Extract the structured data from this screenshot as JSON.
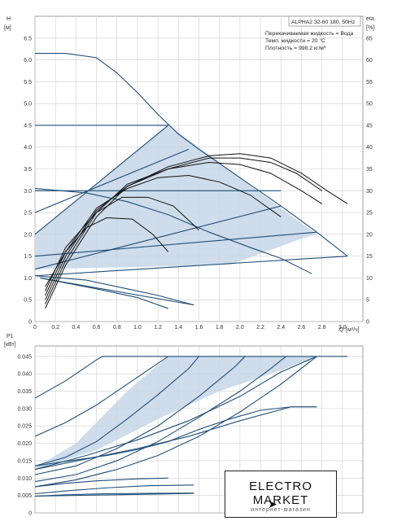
{
  "header": {
    "model": "ALPHA2 32-60 180, 50Hz",
    "medium": "Перекачиваемая жидкость = Вода",
    "temperature": "Темп. жидкости = 20 °C",
    "density": "Плотность = 998.2 кг/м³"
  },
  "logo": {
    "text": "ELECTRO MARKET",
    "subtitle": "интернет-магазин",
    "cursor_icon": "cursor-arrow-icon"
  },
  "colors": {
    "curve": "#1f4e79",
    "fill": "#c6d6e7",
    "grid": "#cfcfcf",
    "efficiency": "#111111"
  },
  "chart_data": [
    {
      "type": "line",
      "name": "head",
      "ylabel": "H",
      "yunit": "[м]",
      "xlabel": "Q",
      "xunit": "[м³/ч]",
      "y2label": "eta",
      "y2unit": "[%]",
      "xlim": [
        0,
        3.2
      ],
      "ylim": [
        0,
        7.0
      ],
      "y2lim": [
        0,
        70
      ],
      "xticks": [
        "0",
        "0.2",
        "0.4",
        "0.6",
        "0.8",
        "1.0",
        "1.2",
        "1.4",
        "1.6",
        "1.8",
        "2.0",
        "2.2",
        "2.4",
        "2.6",
        "2.8",
        "3.0"
      ],
      "yticks": [
        "0",
        "0.5",
        "1.0",
        "1.5",
        "2.0",
        "2.5",
        "3.0",
        "3.5",
        "4.0",
        "4.5",
        "5.0",
        "5.5",
        "6.0",
        "6.5"
      ],
      "y2ticks": [
        "0",
        "5",
        "10",
        "15",
        "20",
        "25",
        "30",
        "35",
        "40",
        "45",
        "50",
        "55",
        "60",
        "65"
      ],
      "grid": true,
      "areas": [
        {
          "points": [
            [
              0,
              2.0
            ],
            [
              1.3,
              4.5
            ],
            [
              1.6,
              4.0
            ],
            [
              2.0,
              3.3
            ],
            [
              2.4,
              2.6
            ],
            [
              2.75,
              2.0
            ],
            [
              2.6,
              1.9
            ],
            [
              1.9,
              1.3
            ],
            [
              0,
              1.2
            ]
          ]
        }
      ],
      "series": [
        {
          "values": [
            [
              0,
              6.15
            ],
            [
              0.3,
              6.15
            ],
            [
              0.6,
              6.05
            ],
            [
              0.8,
              5.7
            ],
            [
              1.0,
              5.25
            ],
            [
              1.2,
              4.75
            ],
            [
              1.4,
              4.3
            ],
            [
              1.6,
              3.95
            ],
            [
              2.0,
              3.3
            ],
            [
              2.4,
              2.65
            ],
            [
              2.75,
              2.05
            ],
            [
              3.05,
              1.5
            ]
          ]
        },
        {
          "values": [
            [
              0,
              4.5
            ],
            [
              1.3,
              4.5
            ]
          ]
        },
        {
          "values": [
            [
              0,
              3.05
            ],
            [
              0.5,
              2.95
            ],
            [
              0.9,
              2.75
            ],
            [
              1.3,
              2.45
            ],
            [
              1.7,
              2.05
            ],
            [
              2.1,
              1.7
            ],
            [
              2.4,
              1.45
            ],
            [
              2.7,
              1.1
            ]
          ]
        },
        {
          "values": [
            [
              0,
              3.0
            ],
            [
              2.4,
              3.0
            ]
          ]
        },
        {
          "values": [
            [
              0,
              2.0
            ],
            [
              1.3,
              4.5
            ]
          ]
        },
        {
          "values": [
            [
              0,
              2.5
            ],
            [
              1.5,
              3.95
            ]
          ]
        },
        {
          "values": [
            [
              0,
              1.5
            ],
            [
              2.75,
              2.05
            ]
          ]
        },
        {
          "values": [
            [
              0,
              1.2
            ],
            [
              2.4,
              2.65
            ]
          ]
        },
        {
          "values": [
            [
              0,
              1.05
            ],
            [
              0.5,
              0.95
            ],
            [
              0.9,
              0.75
            ],
            [
              1.2,
              0.6
            ],
            [
              1.55,
              0.38
            ]
          ]
        },
        {
          "values": [
            [
              0.05,
              1.0
            ],
            [
              1.55,
              0.38
            ]
          ]
        },
        {
          "values": [
            [
              0.05,
              1.0
            ],
            [
              0.6,
              0.75
            ],
            [
              1.0,
              0.55
            ],
            [
              1.3,
              0.3
            ]
          ]
        },
        {
          "values": [
            [
              0,
              1.05
            ],
            [
              3.05,
              1.5
            ]
          ]
        }
      ],
      "efficiency": [
        {
          "values": [
            [
              0.1,
              3
            ],
            [
              0.3,
              13
            ],
            [
              0.6,
              24
            ],
            [
              0.9,
              31
            ],
            [
              1.3,
              35.5
            ],
            [
              1.7,
              38
            ],
            [
              2.0,
              38.5
            ],
            [
              2.3,
              37.5
            ],
            [
              2.6,
              34
            ],
            [
              2.85,
              30
            ],
            [
              3.05,
              27
            ]
          ]
        },
        {
          "values": [
            [
              0.1,
              4
            ],
            [
              0.3,
              14
            ],
            [
              0.6,
              25
            ],
            [
              0.9,
              31.5
            ],
            [
              1.3,
              35
            ],
            [
              1.7,
              37.5
            ],
            [
              2.0,
              37.5
            ],
            [
              2.3,
              36.5
            ],
            [
              2.55,
              34
            ],
            [
              2.8,
              30
            ]
          ]
        },
        {
          "values": [
            [
              0.1,
              5
            ],
            [
              0.3,
              15
            ],
            [
              0.6,
              25.5
            ],
            [
              0.9,
              31
            ],
            [
              1.3,
              35
            ],
            [
              1.7,
              36.5
            ],
            [
              2.0,
              36
            ],
            [
              2.3,
              34
            ],
            [
              2.6,
              30
            ],
            [
              2.8,
              27
            ]
          ]
        },
        {
          "values": [
            [
              0.1,
              6
            ],
            [
              0.3,
              16
            ],
            [
              0.6,
              26
            ],
            [
              0.9,
              30.5
            ],
            [
              1.2,
              33
            ],
            [
              1.5,
              33.5
            ],
            [
              1.8,
              32
            ],
            [
              2.1,
              29
            ],
            [
              2.4,
              24
            ]
          ]
        },
        {
          "values": [
            [
              0.1,
              7
            ],
            [
              0.3,
              17
            ],
            [
              0.6,
              25
            ],
            [
              0.85,
              28.5
            ],
            [
              1.1,
              28.5
            ],
            [
              1.35,
              26.5
            ],
            [
              1.6,
              21
            ]
          ]
        },
        {
          "values": [
            [
              0.1,
              8
            ],
            [
              0.3,
              16
            ],
            [
              0.5,
              21.5
            ],
            [
              0.7,
              23.8
            ],
            [
              0.95,
              23.5
            ],
            [
              1.15,
              20
            ],
            [
              1.3,
              16
            ]
          ]
        }
      ]
    },
    {
      "type": "line",
      "name": "power",
      "ylabel": "P1",
      "yunit": "[кВт]",
      "xlim": [
        0,
        3.2
      ],
      "ylim": [
        0,
        0.048
      ],
      "yticks": [
        "0",
        "0.005",
        "0.010",
        "0.015",
        "0.020",
        "0.025",
        "0.030",
        "0.035",
        "0.040",
        "0.045"
      ],
      "grid": true,
      "areas": [
        {
          "points": [
            [
              0,
              0.0125
            ],
            [
              0.6,
              0.018
            ],
            [
              1.2,
              0.027
            ],
            [
              1.8,
              0.035
            ],
            [
              2.4,
              0.041
            ],
            [
              2.75,
              0.045
            ],
            [
              1.3,
              0.045
            ],
            [
              0.9,
              0.035
            ],
            [
              0.4,
              0.02
            ],
            [
              0,
              0.013
            ]
          ]
        }
      ],
      "series": [
        {
          "values": [
            [
              0,
              0.033
            ],
            [
              0.3,
              0.038
            ],
            [
              0.6,
              0.044
            ],
            [
              0.66,
              0.045
            ],
            [
              3.05,
              0.045
            ]
          ]
        },
        {
          "values": [
            [
              0,
              0.022
            ],
            [
              0.3,
              0.026
            ],
            [
              0.6,
              0.031
            ],
            [
              0.9,
              0.037
            ],
            [
              1.2,
              0.043
            ],
            [
              1.3,
              0.045
            ]
          ]
        },
        {
          "values": [
            [
              0,
              0.0135
            ],
            [
              0.3,
              0.016
            ],
            [
              0.6,
              0.0205
            ],
            [
              0.9,
              0.027
            ],
            [
              1.2,
              0.034
            ],
            [
              1.5,
              0.0415
            ],
            [
              1.6,
              0.045
            ]
          ]
        },
        {
          "values": [
            [
              0,
              0.011
            ],
            [
              0.4,
              0.0135
            ],
            [
              0.8,
              0.0185
            ],
            [
              1.2,
              0.025
            ],
            [
              1.6,
              0.0335
            ],
            [
              1.95,
              0.042
            ],
            [
              2.05,
              0.045
            ]
          ]
        },
        {
          "values": [
            [
              0,
              0.009
            ],
            [
              0.4,
              0.011
            ],
            [
              0.8,
              0.015
            ],
            [
              1.2,
              0.0205
            ],
            [
              1.6,
              0.0275
            ],
            [
              2.0,
              0.035
            ],
            [
              2.3,
              0.0415
            ],
            [
              2.45,
              0.045
            ]
          ]
        },
        {
          "values": [
            [
              0,
              0.0075
            ],
            [
              0.4,
              0.0095
            ],
            [
              0.8,
              0.0125
            ],
            [
              1.2,
              0.0165
            ],
            [
              1.6,
              0.022
            ],
            [
              2.0,
              0.029
            ],
            [
              2.4,
              0.037
            ],
            [
              2.75,
              0.045
            ]
          ]
        },
        {
          "values": [
            [
              0,
              0.0135
            ],
            [
              0.3,
              0.0148
            ],
            [
              0.7,
              0.0165
            ],
            [
              1.0,
              0.0182
            ],
            [
              1.3,
              0.0205
            ],
            [
              1.6,
              0.024
            ],
            [
              1.9,
              0.027
            ],
            [
              2.2,
              0.0295
            ],
            [
              2.5,
              0.0305
            ],
            [
              2.75,
              0.0305
            ]
          ]
        },
        {
          "values": [
            [
              0,
              0.0125
            ],
            [
              0.5,
              0.0155
            ],
            [
              1.0,
              0.0185
            ],
            [
              1.5,
              0.022
            ],
            [
              2.0,
              0.0265
            ],
            [
              2.5,
              0.0305
            ],
            [
              2.75,
              0.0305
            ]
          ]
        },
        {
          "values": [
            [
              0,
              0.0125
            ],
            [
              0.5,
              0.0165
            ],
            [
              1.0,
              0.021
            ],
            [
              1.5,
              0.0265
            ],
            [
              2.0,
              0.0335
            ],
            [
              2.4,
              0.0405
            ],
            [
              2.75,
              0.045
            ]
          ]
        },
        {
          "values": [
            [
              0,
              0.0075
            ],
            [
              0.3,
              0.0085
            ],
            [
              0.6,
              0.0092
            ],
            [
              1.0,
              0.0098
            ],
            [
              1.3,
              0.01
            ]
          ]
        },
        {
          "values": [
            [
              0,
              0.0055
            ],
            [
              0.3,
              0.0063
            ],
            [
              0.7,
              0.0072
            ],
            [
              1.1,
              0.0078
            ],
            [
              1.55,
              0.008
            ]
          ]
        },
        {
          "values": [
            [
              0,
              0.0048
            ],
            [
              0.3,
              0.0052
            ],
            [
              0.7,
              0.0055
            ],
            [
              1.1,
              0.0056
            ],
            [
              1.55,
              0.0057
            ]
          ]
        },
        {
          "values": [
            [
              0,
              0.0048
            ],
            [
              1.55,
              0.0056
            ]
          ]
        }
      ]
    }
  ]
}
